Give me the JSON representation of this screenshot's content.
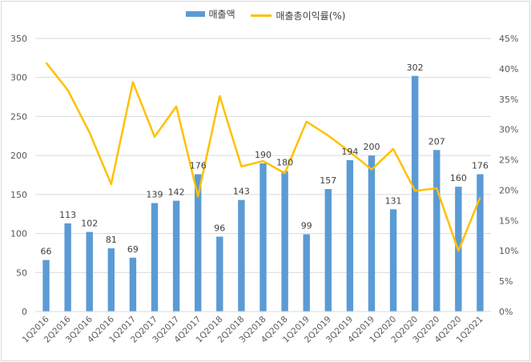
{
  "chart_data": {
    "type": "bar+line",
    "categories": [
      "1Q2016",
      "2Q2016",
      "3Q2016",
      "4Q2016",
      "1Q2017",
      "2Q2017",
      "3Q2017",
      "4Q2017",
      "1Q2018",
      "2Q2018",
      "3Q2018",
      "4Q2018",
      "1Q2019",
      "2Q2019",
      "3Q2019",
      "4Q2019",
      "1Q2020",
      "2Q2020",
      "3Q2020",
      "4Q2020",
      "1Q2021"
    ],
    "series": [
      {
        "name": "매출액",
        "type": "bar",
        "axis": "left",
        "color": "#5b9bd5",
        "values": [
          66,
          113,
          102,
          81,
          69,
          139,
          142,
          176,
          96,
          143,
          190,
          180,
          99,
          157,
          194,
          200,
          131,
          302,
          207,
          160,
          176
        ]
      },
      {
        "name": "매출총이익률(%)",
        "type": "line",
        "axis": "right",
        "color": "#ffc000",
        "values": [
          41,
          36.5,
          29.5,
          21,
          37.8,
          28.8,
          33.8,
          19,
          35.5,
          23.9,
          24.8,
          22.8,
          31.3,
          29,
          26.3,
          23.4,
          26.8,
          19.9,
          20.3,
          10,
          18.8
        ]
      }
    ],
    "left_axis": {
      "ylim": [
        0,
        350
      ],
      "ticks": [
        "0",
        "50",
        "100",
        "150",
        "200",
        "250",
        "300",
        "350"
      ]
    },
    "right_axis": {
      "ylim": [
        0,
        45
      ],
      "ticks": [
        "0%",
        "5%",
        "10%",
        "15%",
        "20%",
        "25%",
        "30%",
        "35%",
        "40%",
        "45%"
      ]
    },
    "grid": true,
    "legend_position": "top"
  }
}
